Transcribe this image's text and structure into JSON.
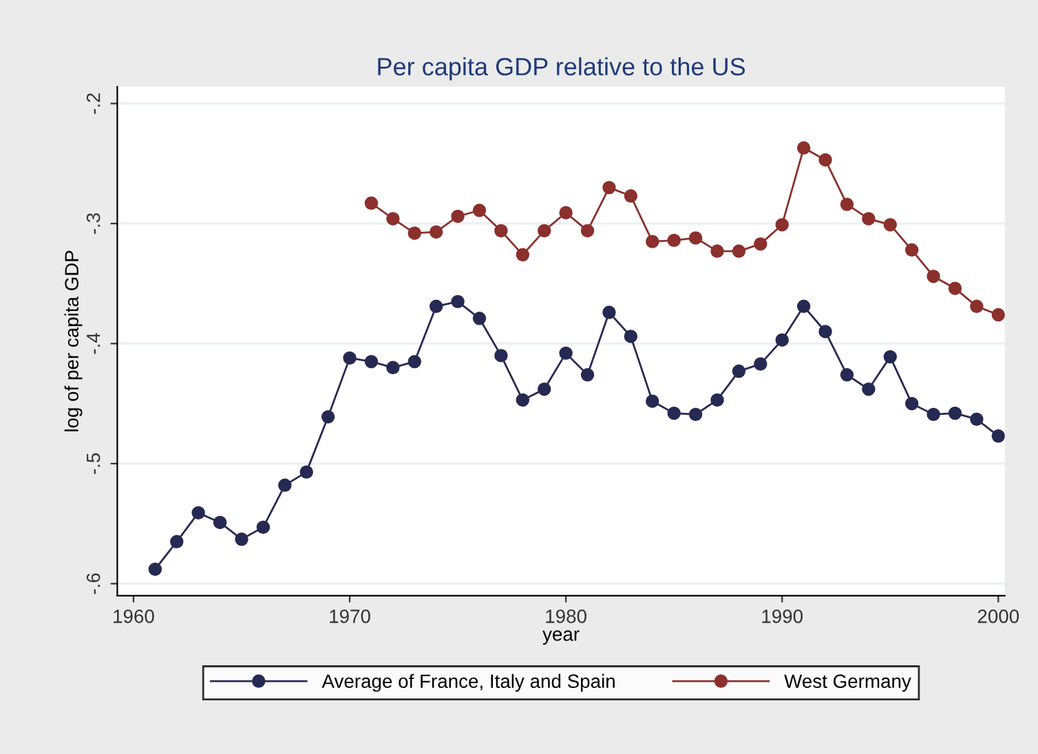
{
  "chart_data": {
    "type": "line",
    "title": "Per capita GDP relative to the US",
    "xlabel": "year",
    "ylabel": "log of per capita GDP",
    "x": [
      1961,
      1962,
      1963,
      1964,
      1965,
      1966,
      1967,
      1968,
      1969,
      1970,
      1971,
      1972,
      1973,
      1974,
      1975,
      1976,
      1977,
      1978,
      1979,
      1980,
      1981,
      1982,
      1983,
      1984,
      1985,
      1986,
      1987,
      1988,
      1989,
      1990,
      1991,
      1992,
      1993,
      1994,
      1995,
      1996,
      1997,
      1998,
      1999,
      2000
    ],
    "series": [
      {
        "name": "Average of France, Italy and Spain",
        "color": "#262a52",
        "values": [
          -0.588,
          -0.565,
          -0.541,
          -0.549,
          -0.563,
          -0.553,
          -0.518,
          -0.507,
          -0.461,
          -0.412,
          -0.415,
          -0.42,
          -0.415,
          -0.369,
          -0.365,
          -0.379,
          -0.41,
          -0.447,
          -0.438,
          -0.408,
          -0.426,
          -0.374,
          -0.394,
          -0.448,
          -0.458,
          -0.459,
          -0.447,
          -0.423,
          -0.417,
          -0.397,
          -0.369,
          -0.39,
          -0.426,
          -0.438,
          -0.411,
          -0.45,
          -0.459,
          -0.458,
          -0.463,
          -0.477
        ]
      },
      {
        "name": "West Germany",
        "color": "#8b302c",
        "values": [
          null,
          null,
          null,
          null,
          null,
          null,
          null,
          null,
          null,
          null,
          -0.283,
          -0.296,
          -0.308,
          -0.307,
          -0.294,
          -0.289,
          -0.306,
          -0.326,
          -0.306,
          -0.291,
          -0.306,
          -0.27,
          -0.277,
          -0.315,
          -0.314,
          -0.312,
          -0.323,
          -0.323,
          -0.317,
          -0.301,
          -0.237,
          -0.247,
          -0.284,
          -0.296,
          -0.301,
          -0.322,
          -0.344,
          -0.354,
          -0.369,
          -0.376
        ]
      }
    ],
    "xlim": [
      1959.25,
      2000.3
    ],
    "ylim": [
      -0.61,
      -0.186
    ],
    "xticks": [
      1960,
      1970,
      1980,
      1990,
      2000
    ],
    "yticks": [
      {
        "value": -0.2,
        "label": "-.2"
      },
      {
        "value": -0.3,
        "label": "-.3"
      },
      {
        "value": -0.4,
        "label": "-.4"
      },
      {
        "value": -0.5,
        "label": "-.5"
      },
      {
        "value": -0.6,
        "label": "-.6"
      }
    ],
    "grid": "y",
    "legend": "bottom",
    "marker": "circle",
    "line_style": "solid"
  }
}
